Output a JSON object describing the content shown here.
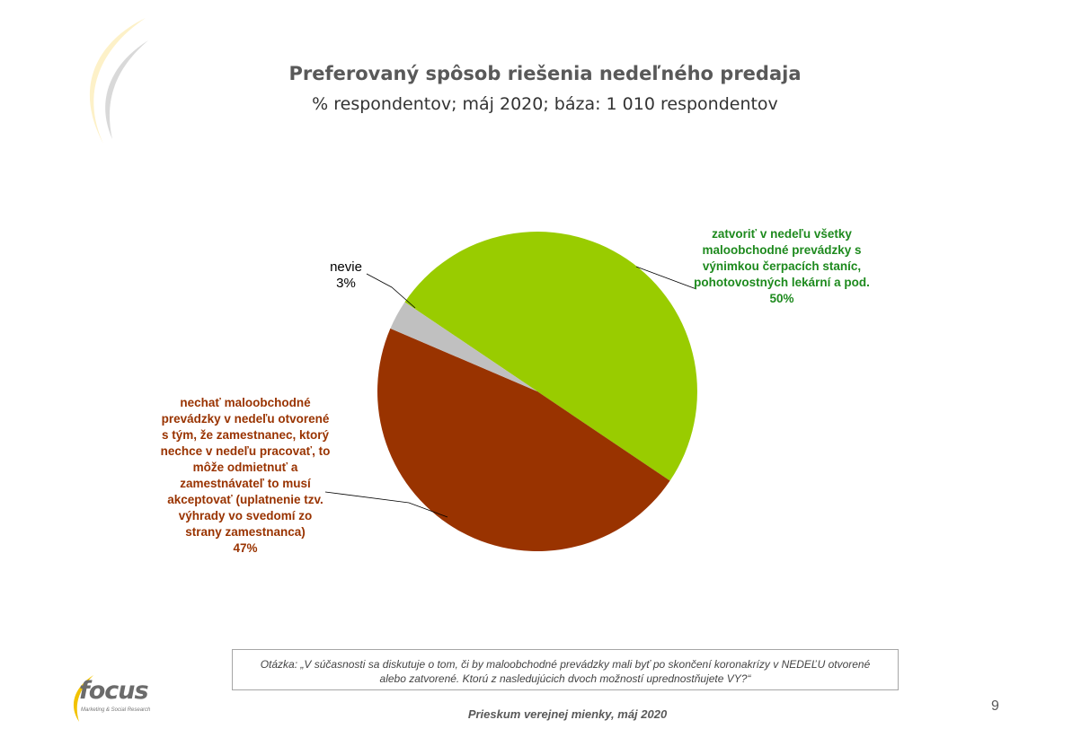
{
  "header": {
    "title": "Preferovaný spôsob riešenia nedeľného predaja",
    "subtitle": "%  respondentov; máj 2020; báza: 1 010 respondentov"
  },
  "chart_data": {
    "type": "pie",
    "title": "Preferovaný spôsob riešenia nedeľného predaja",
    "subtitle": "%  respondentov; máj 2020; báza: 1 010 respondentov",
    "slices": [
      {
        "label": "zatvoriť v nedeľu všetky maloobchodné prevádzky s výnimkou čerpacích staníc, pohotovostných lekární a pod.",
        "value": 50,
        "pct_label": "50%",
        "color": "#99cc00",
        "label_color": "#1e8a1e"
      },
      {
        "label": "nechať maloobchodné prevádzky v nedeľu otvorené s tým, že zamestnanec, ktorý nechce v nedeľu pracovať, to môže odmietnuť a zamestnávateľ to musí akceptovať (uplatnenie tzv. výhrady vo svedomí zo strany zamestnanca)",
        "value": 47,
        "pct_label": "47%",
        "color": "#993300",
        "label_color": "#993300"
      },
      {
        "label": "nevie",
        "value": 3,
        "pct_label": "3%",
        "color": "#c0c0c0",
        "label_color": "#000000"
      }
    ]
  },
  "question": {
    "line1": "Otázka: „V súčasnosti sa diskutuje o tom, či by maloobchodné prevádzky mali byť po skončení koronakrízy v NEDEĽU otvorené",
    "line2": "alebo zatvorené.  Ktorú z nasledujúcich dvoch možností uprednostňujete VY?“"
  },
  "footer": {
    "text": "Prieskum verejnej mienky, máj 2020",
    "page_number": "9"
  },
  "logo": {
    "word": "focus",
    "tagline": "Marketing & Social Research"
  }
}
